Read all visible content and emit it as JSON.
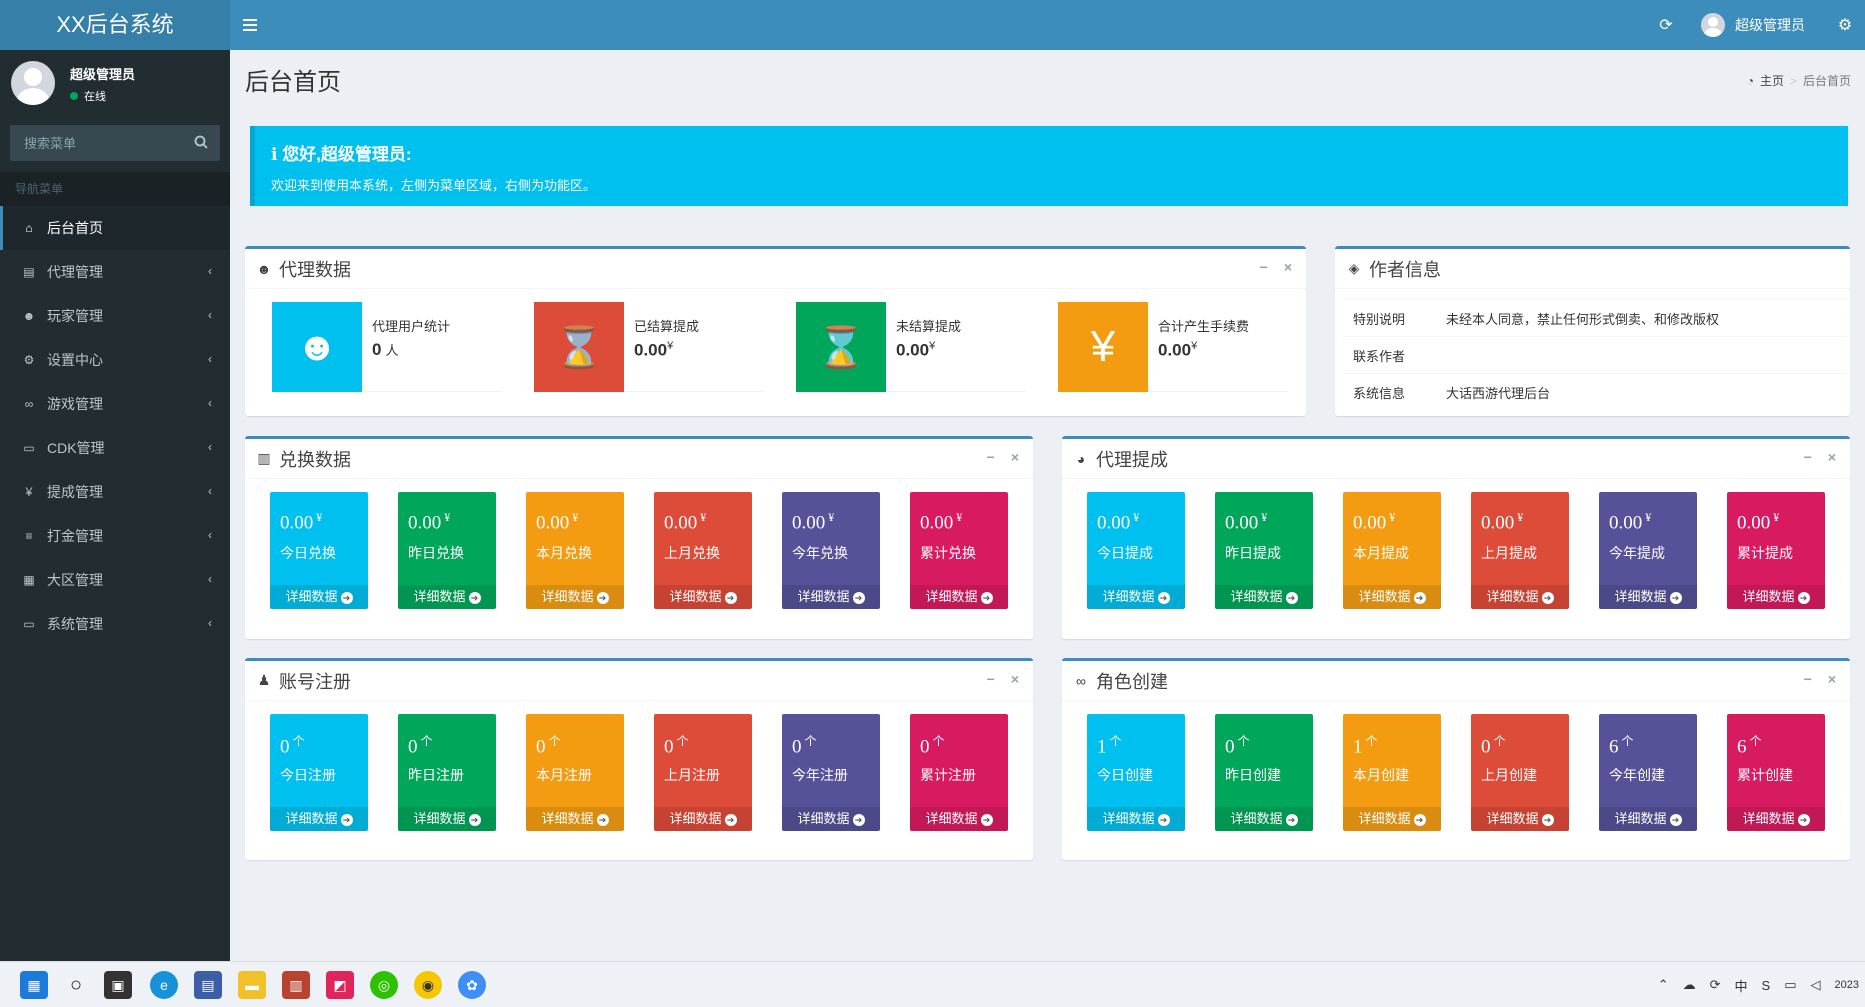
{
  "app": {
    "logo": "XX后台系统"
  },
  "header": {
    "username": "超级管理员"
  },
  "sidebar": {
    "user_name": "超级管理员",
    "user_status": "在线",
    "search_placeholder": "搜索菜单",
    "nav_header": "导航菜单",
    "items": [
      {
        "label": "后台首页",
        "icon": "home-icon",
        "glyph": "⌂"
      },
      {
        "label": "代理管理",
        "icon": "id-card-icon",
        "glyph": "▤"
      },
      {
        "label": "玩家管理",
        "icon": "users-icon",
        "glyph": "☻"
      },
      {
        "label": "设置中心",
        "icon": "gears-icon",
        "glyph": "⚙"
      },
      {
        "label": "游戏管理",
        "icon": "gamepad-icon",
        "glyph": "∞"
      },
      {
        "label": "CDK管理",
        "icon": "credit-card-icon",
        "glyph": "▭"
      },
      {
        "label": "提成管理",
        "icon": "yen-icon",
        "glyph": "¥"
      },
      {
        "label": "打金管理",
        "icon": "list-icon",
        "glyph": "≡"
      },
      {
        "label": "大区管理",
        "icon": "th-large-icon",
        "glyph": "▦"
      },
      {
        "label": "系统管理",
        "icon": "desktop-icon",
        "glyph": "▭"
      }
    ]
  },
  "page": {
    "title": "后台首页",
    "breadcrumb_home": "主页",
    "breadcrumb_current": "后台首页"
  },
  "callout": {
    "title": "您好,超级管理员:",
    "text": "欢迎来到使用本系统，左侧为菜单区域，右侧为功能区。"
  },
  "agent_data": {
    "title": "代理数据",
    "items": [
      {
        "label": "代理用户统计",
        "value": "0",
        "unit": "人",
        "color": "#00c0ef",
        "icon": "users-icon"
      },
      {
        "label": "已结算提成",
        "value": "0.00",
        "unit": "¥",
        "color": "#dd4b39",
        "icon": "hourglass-icon"
      },
      {
        "label": "未结算提成",
        "value": "0.00",
        "unit": "¥",
        "color": "#00a65a",
        "icon": "hourglass-icon"
      },
      {
        "label": "合计产生手续费",
        "value": "0.00",
        "unit": "¥",
        "color": "#f39c12",
        "icon": "yen-icon"
      }
    ]
  },
  "author": {
    "title": "作者信息",
    "rows": [
      {
        "key": "特别说明",
        "value": "未经本人同意，禁止任何形式倒卖、和修改版权"
      },
      {
        "key": "联系作者",
        "value": ""
      },
      {
        "key": "系统信息",
        "value": "大话西游代理后台"
      }
    ]
  },
  "footer_link": "详细数据",
  "exchange": {
    "title": "兑换数据",
    "items": [
      {
        "value": "0.00",
        "unit": "¥",
        "label": "今日兑换"
      },
      {
        "value": "0.00",
        "unit": "¥",
        "label": "昨日兑换"
      },
      {
        "value": "0.00",
        "unit": "¥",
        "label": "本月兑换"
      },
      {
        "value": "0.00",
        "unit": "¥",
        "label": "上月兑换"
      },
      {
        "value": "0.00",
        "unit": "¥",
        "label": "今年兑换"
      },
      {
        "value": "0.00",
        "unit": "¥",
        "label": "累计兑换"
      }
    ]
  },
  "commission": {
    "title": "代理提成",
    "items": [
      {
        "value": "0.00",
        "unit": "¥",
        "label": "今日提成"
      },
      {
        "value": "0.00",
        "unit": "¥",
        "label": "昨日提成"
      },
      {
        "value": "0.00",
        "unit": "¥",
        "label": "本月提成"
      },
      {
        "value": "0.00",
        "unit": "¥",
        "label": "上月提成"
      },
      {
        "value": "0.00",
        "unit": "¥",
        "label": "今年提成"
      },
      {
        "value": "0.00",
        "unit": "¥",
        "label": "累计提成"
      }
    ]
  },
  "register": {
    "title": "账号注册",
    "items": [
      {
        "value": "0",
        "unit": "个",
        "label": "今日注册"
      },
      {
        "value": "0",
        "unit": "个",
        "label": "昨日注册"
      },
      {
        "value": "0",
        "unit": "个",
        "label": "本月注册"
      },
      {
        "value": "0",
        "unit": "个",
        "label": "上月注册"
      },
      {
        "value": "0",
        "unit": "个",
        "label": "今年注册"
      },
      {
        "value": "0",
        "unit": "个",
        "label": "累计注册"
      }
    ]
  },
  "roles": {
    "title": "角色创建",
    "items": [
      {
        "value": "1",
        "unit": "个",
        "label": "今日创建"
      },
      {
        "value": "0",
        "unit": "个",
        "label": "昨日创建"
      },
      {
        "value": "1",
        "unit": "个",
        "label": "本月创建"
      },
      {
        "value": "0",
        "unit": "个",
        "label": "上月创建"
      },
      {
        "value": "6",
        "unit": "个",
        "label": "今年创建"
      },
      {
        "value": "6",
        "unit": "个",
        "label": "累计创建"
      }
    ]
  },
  "colors": {
    "aqua": "#00c0ef",
    "green": "#00a65a",
    "yellow": "#f39c12",
    "red": "#dd4b39",
    "purple": "#555299",
    "maroon": "#d81b60"
  },
  "taskbar": {
    "clock": "2023"
  }
}
